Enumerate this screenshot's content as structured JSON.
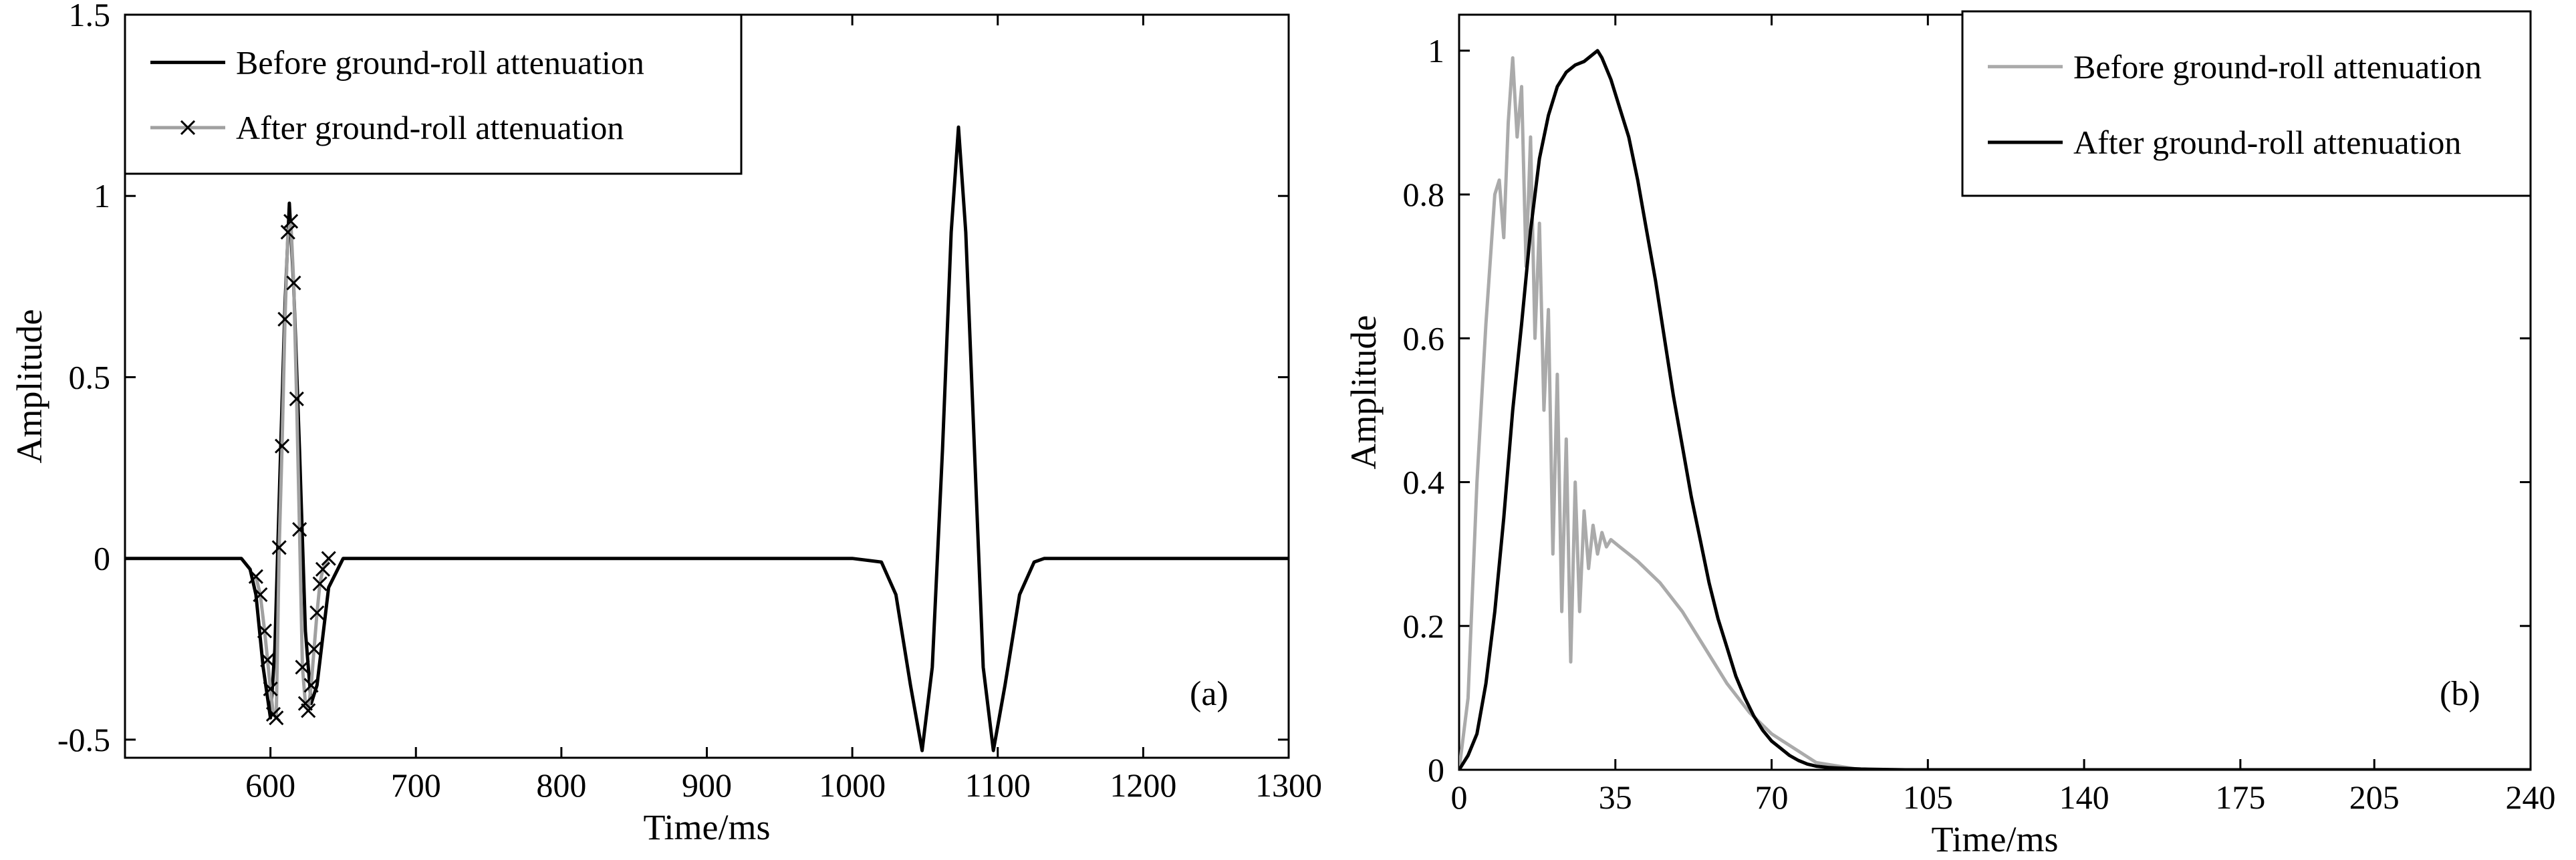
{
  "chart_data": [
    {
      "type": "line",
      "panel_label": "(a)",
      "xlabel": "Time/ms",
      "ylabel": "Amplitude",
      "xlim": [
        500,
        1300
      ],
      "ylim": [
        -0.55,
        1.5
      ],
      "xticks": [
        600,
        700,
        800,
        900,
        1000,
        1100,
        1200,
        1300
      ],
      "xtick_labels": [
        "600",
        "700",
        "800",
        "900",
        "1000",
        "1100",
        "1200",
        "1300"
      ],
      "yticks": [
        -0.5,
        0,
        0.5,
        1,
        1.5
      ],
      "ytick_labels": [
        "-0.5",
        "0",
        "0.5",
        "1",
        "1.5"
      ],
      "legend_position": "top-left",
      "series": [
        {
          "name": "Before ground-roll attenuation",
          "color": "#000000",
          "marker": "none",
          "x": [
            500,
            580,
            586,
            590,
            595,
            600,
            603,
            607,
            610,
            613,
            616,
            620,
            624,
            628,
            632,
            640,
            650,
            660,
            1000,
            1020,
            1030,
            1040,
            1048,
            1055,
            1062,
            1068,
            1073,
            1078,
            1084,
            1090,
            1097,
            1105,
            1115,
            1125,
            1132,
            1300
          ],
          "y": [
            0,
            0,
            -0.03,
            -0.1,
            -0.3,
            -0.44,
            -0.25,
            0.3,
            0.7,
            0.98,
            0.75,
            0.3,
            -0.2,
            -0.4,
            -0.35,
            -0.08,
            0,
            0,
            0,
            -0.01,
            -0.1,
            -0.35,
            -0.53,
            -0.3,
            0.3,
            0.9,
            1.19,
            0.9,
            0.3,
            -0.3,
            -0.53,
            -0.35,
            -0.1,
            -0.01,
            0,
            0
          ]
        },
        {
          "name": "After ground-roll attenuation",
          "color": "#a0a0a0",
          "marker": "x",
          "x": [
            590,
            593,
            596,
            598,
            600,
            602,
            604,
            606,
            608,
            610,
            612,
            614,
            616,
            618,
            620,
            622,
            624,
            626,
            628,
            630,
            632,
            634,
            636,
            640
          ],
          "y": [
            -0.05,
            -0.1,
            -0.2,
            -0.28,
            -0.36,
            -0.43,
            -0.44,
            0.03,
            0.31,
            0.66,
            0.9,
            0.93,
            0.76,
            0.44,
            0.08,
            -0.3,
            -0.4,
            -0.42,
            -0.35,
            -0.25,
            -0.15,
            -0.07,
            -0.03,
            0
          ]
        }
      ]
    },
    {
      "type": "line",
      "panel_label": "(b)",
      "xlabel": "Time/ms",
      "ylabel": "Amplitude",
      "xlim": [
        0,
        240
      ],
      "ylim": [
        0,
        1.05
      ],
      "xticks": [
        0,
        35,
        70,
        105,
        140,
        175,
        205,
        240
      ],
      "xtick_labels": [
        "0",
        "35",
        "70",
        "105",
        "140",
        "175",
        "205",
        "240"
      ],
      "yticks": [
        0,
        0.2,
        0.4,
        0.6,
        0.8,
        1
      ],
      "ytick_labels": [
        "0",
        "0.2",
        "0.4",
        "0.6",
        "0.8",
        "1"
      ],
      "legend_position": "top-right",
      "series": [
        {
          "name": "Before ground-roll attenuation",
          "color": "#aaaaaa",
          "marker": "none",
          "x": [
            0,
            2,
            4,
            6,
            8,
            9,
            10,
            11,
            12,
            13,
            14,
            15,
            16,
            17,
            18,
            19,
            20,
            21,
            22,
            23,
            24,
            25,
            26,
            27,
            28,
            29,
            30,
            31,
            32,
            33,
            34,
            36,
            38,
            40,
            45,
            50,
            55,
            60,
            65,
            70,
            75,
            80,
            85,
            90
          ],
          "y": [
            0,
            0.1,
            0.4,
            0.62,
            0.8,
            0.82,
            0.74,
            0.9,
            0.99,
            0.88,
            0.95,
            0.7,
            0.88,
            0.6,
            0.76,
            0.5,
            0.64,
            0.3,
            0.55,
            0.22,
            0.46,
            0.15,
            0.4,
            0.22,
            0.36,
            0.28,
            0.34,
            0.3,
            0.33,
            0.31,
            0.32,
            0.31,
            0.3,
            0.29,
            0.26,
            0.22,
            0.17,
            0.12,
            0.08,
            0.05,
            0.03,
            0.01,
            0.005,
            0
          ]
        },
        {
          "name": "After ground-roll attenuation",
          "color": "#000000",
          "marker": "none",
          "x": [
            0,
            2,
            4,
            6,
            8,
            10,
            12,
            14,
            16,
            18,
            20,
            22,
            24,
            26,
            28,
            30,
            31,
            32,
            34,
            36,
            38,
            40,
            42,
            44,
            46,
            48,
            50,
            52,
            54,
            56,
            58,
            60,
            62,
            64,
            66,
            68,
            70,
            72,
            74,
            76,
            78,
            80,
            83,
            86,
            90,
            95,
            100,
            240
          ],
          "y": [
            0,
            0.02,
            0.05,
            0.12,
            0.22,
            0.35,
            0.5,
            0.62,
            0.75,
            0.85,
            0.91,
            0.95,
            0.97,
            0.98,
            0.985,
            0.995,
            1.0,
            0.99,
            0.96,
            0.92,
            0.88,
            0.82,
            0.75,
            0.68,
            0.6,
            0.52,
            0.45,
            0.38,
            0.32,
            0.26,
            0.21,
            0.17,
            0.13,
            0.1,
            0.075,
            0.055,
            0.04,
            0.03,
            0.02,
            0.013,
            0.008,
            0.005,
            0.003,
            0.002,
            0.001,
            0.0005,
            0,
            0
          ]
        }
      ]
    }
  ]
}
